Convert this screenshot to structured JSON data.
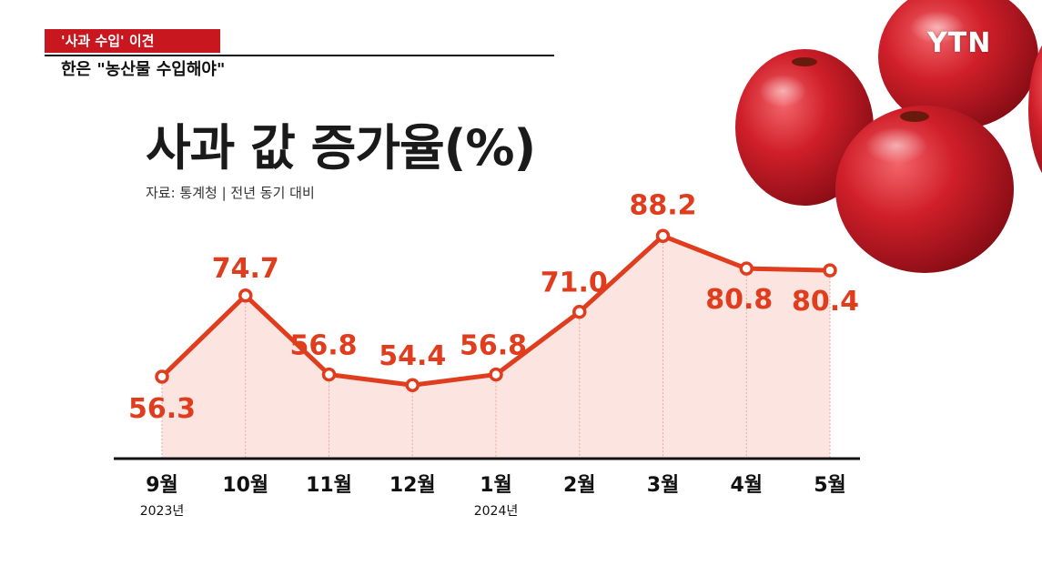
{
  "topic": "'사과 수입' 이견",
  "headline": "한은 \"농산물 수입해야\"",
  "logo": "YTN",
  "chart_data": {
    "type": "area",
    "title": "사과 값 증가율(%)",
    "subtitle": "자료: 통계청 | 전년 동기 대비",
    "categories": [
      "9월",
      "10월",
      "11월",
      "12월",
      "1월",
      "2월",
      "3월",
      "4월",
      "5월"
    ],
    "year_labels": [
      "2023년",
      "",
      "",
      "",
      "2024년",
      "",
      "",
      "",
      ""
    ],
    "values": [
      56.3,
      74.7,
      56.8,
      54.4,
      56.8,
      71.0,
      88.2,
      80.8,
      80.4
    ],
    "value_labels": [
      "56.3",
      "74.7",
      "56.8",
      "54.4",
      "56.8",
      "71.0",
      "88.2",
      "80.8",
      "80.4"
    ],
    "colors": {
      "line": "#e03c1e",
      "fill": "#fbe1dc",
      "label": "#e03c1e"
    }
  }
}
